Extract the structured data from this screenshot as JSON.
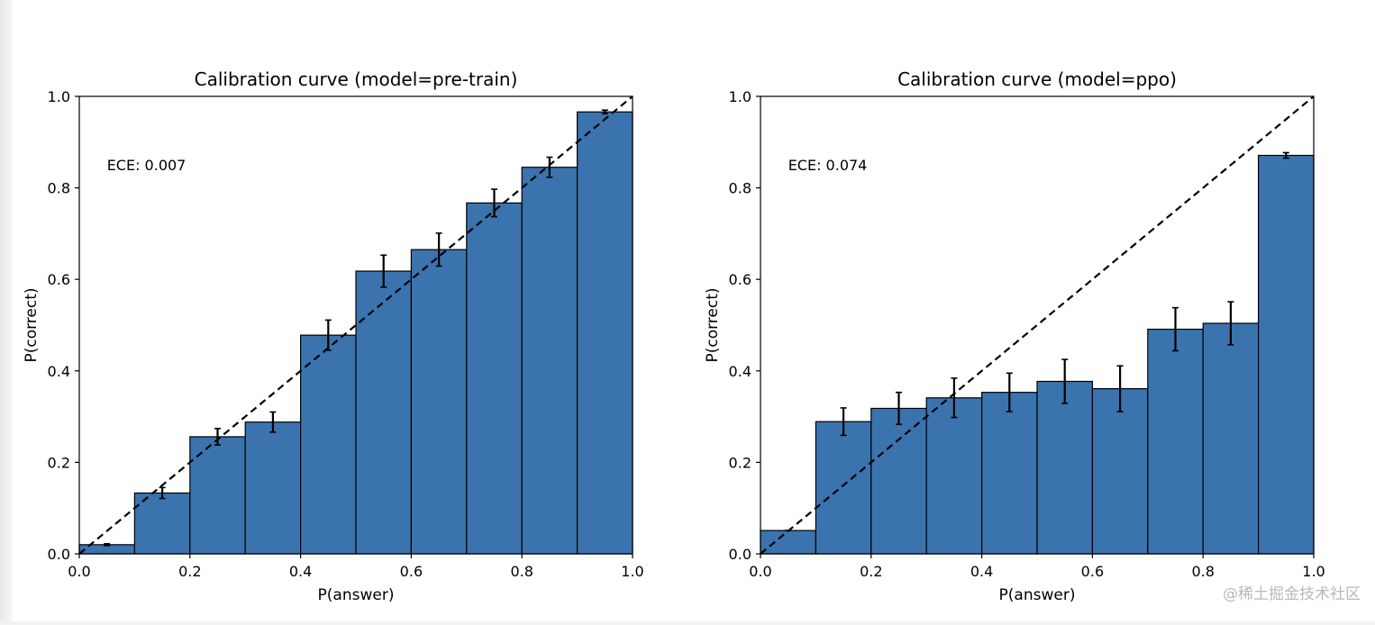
{
  "chart_data": [
    {
      "type": "bar",
      "title": "Calibration curve (model=pre-train)",
      "xlabel": "P(answer)",
      "ylabel": "P(correct)",
      "xlim": [
        0,
        1
      ],
      "ylim": [
        0,
        1
      ],
      "xticks": [
        "0.0",
        "0.2",
        "0.4",
        "0.6",
        "0.8",
        "1.0"
      ],
      "yticks": [
        "0.0",
        "0.2",
        "0.4",
        "0.6",
        "0.8",
        "1.0"
      ],
      "annotation": "ECE: 0.007",
      "bin_edges": [
        0,
        0.1,
        0.2,
        0.3,
        0.4,
        0.5,
        0.6,
        0.7,
        0.8,
        0.9,
        1.0
      ],
      "values": [
        0.02,
        0.133,
        0.256,
        0.288,
        0.478,
        0.618,
        0.665,
        0.767,
        0.845,
        0.966
      ],
      "errors": [
        0.002,
        0.012,
        0.018,
        0.022,
        0.033,
        0.035,
        0.036,
        0.03,
        0.022,
        0.004
      ],
      "bar_color": "#3b73ae",
      "diagonal": "dashed"
    },
    {
      "type": "bar",
      "title": "Calibration curve (model=ppo)",
      "xlabel": "P(answer)",
      "ylabel": "P(correct)",
      "xlim": [
        0,
        1
      ],
      "ylim": [
        0,
        1
      ],
      "xticks": [
        "0.0",
        "0.2",
        "0.4",
        "0.6",
        "0.8",
        "1.0"
      ],
      "yticks": [
        "0.0",
        "0.2",
        "0.4",
        "0.6",
        "0.8",
        "1.0"
      ],
      "annotation": "ECE: 0.074",
      "bin_edges": [
        0,
        0.1,
        0.2,
        0.3,
        0.4,
        0.5,
        0.6,
        0.7,
        0.8,
        0.9,
        1.0
      ],
      "values": [
        0.051,
        0.289,
        0.318,
        0.341,
        0.353,
        0.377,
        0.361,
        0.491,
        0.504,
        0.871
      ],
      "errors": [
        0.0,
        0.03,
        0.035,
        0.043,
        0.042,
        0.048,
        0.05,
        0.047,
        0.047,
        0.006
      ],
      "bar_color": "#3b73ae",
      "diagonal": "dashed"
    }
  ],
  "watermark": "@稀土掘金技术社区"
}
